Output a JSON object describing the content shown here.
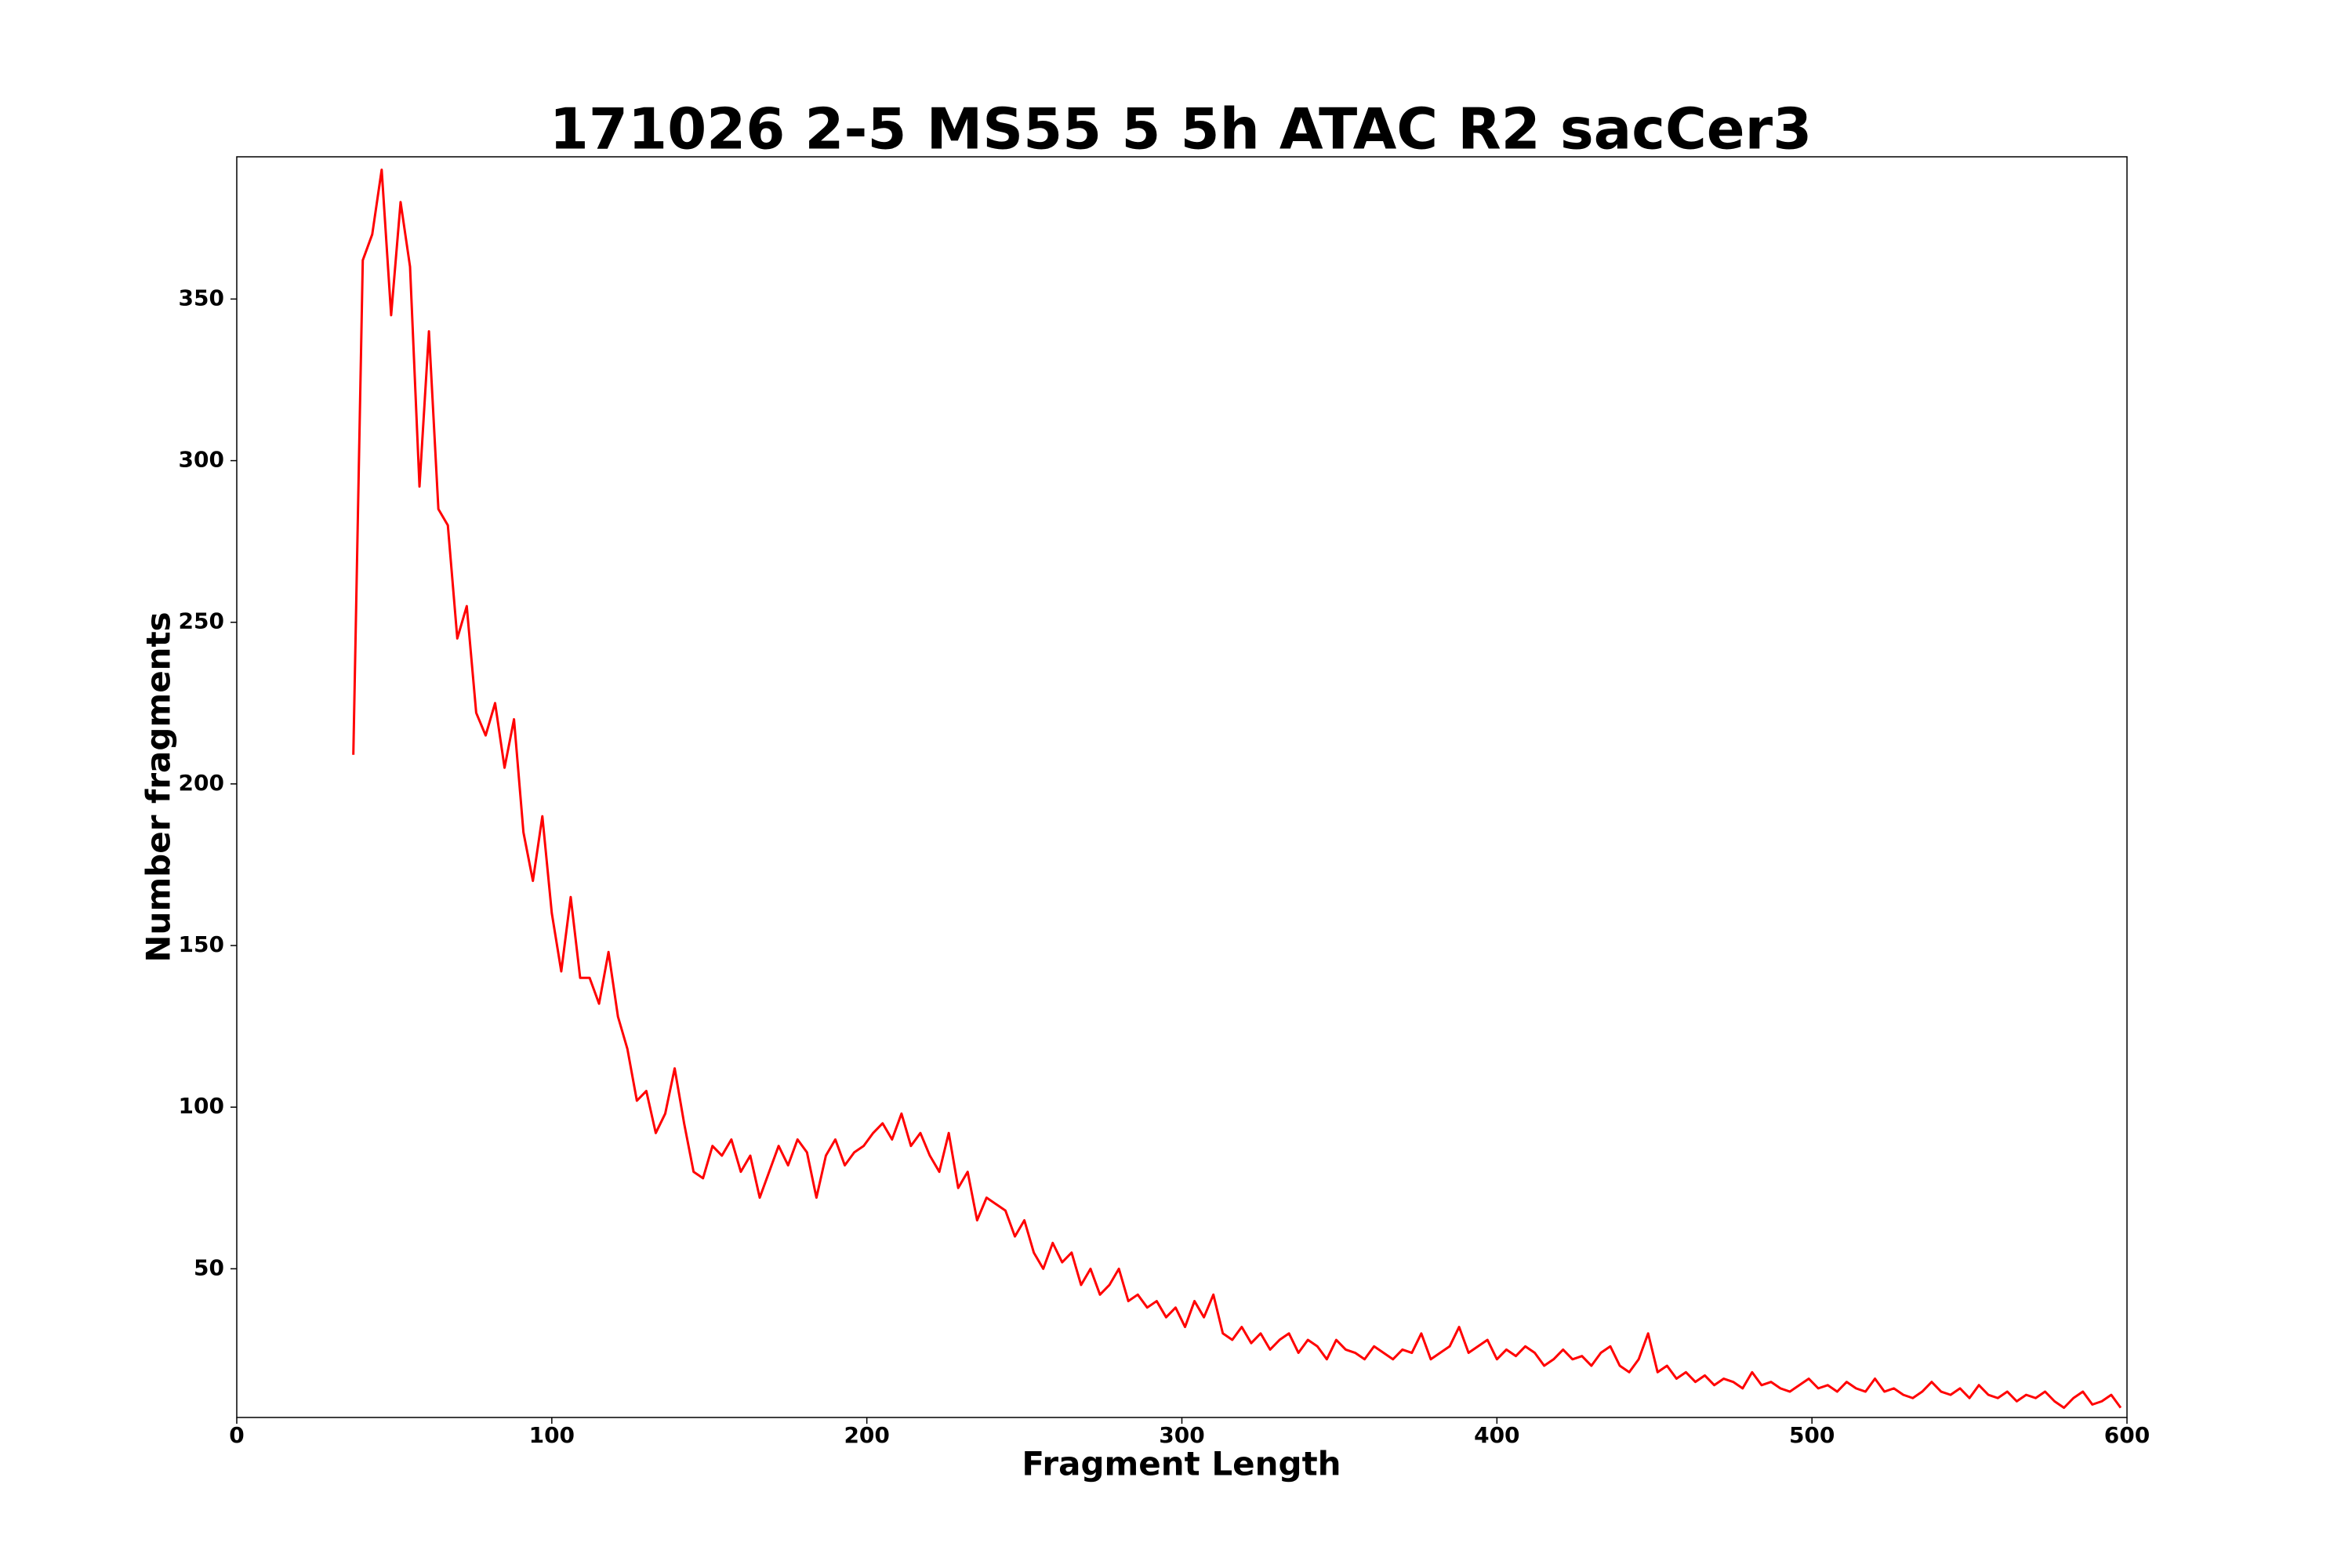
{
  "chart_data": {
    "type": "line",
    "title": "171026 2-5 MS55 5 5h ATAC R2 sacCer3",
    "xlabel": "Fragment Length",
    "ylabel": "Number fragments",
    "x": [
      37,
      40,
      43,
      46,
      49,
      52,
      55,
      58,
      61,
      64,
      67,
      70,
      73,
      76,
      79,
      82,
      85,
      88,
      91,
      94,
      97,
      100,
      103,
      106,
      109,
      112,
      115,
      118,
      121,
      124,
      127,
      130,
      133,
      136,
      139,
      142,
      145,
      148,
      151,
      154,
      157,
      160,
      163,
      166,
      169,
      172,
      175,
      178,
      181,
      184,
      187,
      190,
      193,
      196,
      199,
      202,
      205,
      208,
      211,
      214,
      217,
      220,
      223,
      226,
      229,
      232,
      235,
      238,
      241,
      244,
      247,
      250,
      253,
      256,
      259,
      262,
      265,
      268,
      271,
      274,
      277,
      280,
      283,
      286,
      289,
      292,
      295,
      298,
      301,
      304,
      307,
      310,
      313,
      316,
      319,
      322,
      325,
      328,
      331,
      334,
      337,
      340,
      343,
      346,
      349,
      352,
      355,
      358,
      361,
      364,
      367,
      370,
      373,
      376,
      379,
      382,
      385,
      388,
      391,
      394,
      397,
      400,
      403,
      406,
      409,
      412,
      415,
      418,
      421,
      424,
      427,
      430,
      433,
      436,
      439,
      442,
      445,
      448,
      451,
      454,
      457,
      460,
      463,
      466,
      469,
      472,
      475,
      478,
      481,
      484,
      487,
      490,
      493,
      496,
      499,
      502,
      505,
      508,
      511,
      514,
      517,
      520,
      523,
      526,
      529,
      532,
      535,
      538,
      541,
      544,
      547,
      550,
      553,
      556,
      559,
      562,
      565,
      568,
      571,
      574,
      577,
      580,
      583,
      586,
      589,
      592,
      595,
      598
    ],
    "series": [
      {
        "name": "fragments",
        "color": "#ff0000",
        "values": [
          209,
          362,
          370,
          390,
          345,
          380,
          360,
          292,
          340,
          285,
          280,
          245,
          255,
          222,
          215,
          225,
          205,
          220,
          185,
          170,
          190,
          160,
          142,
          165,
          140,
          140,
          132,
          148,
          128,
          118,
          102,
          105,
          92,
          98,
          112,
          95,
          80,
          78,
          88,
          85,
          90,
          80,
          85,
          72,
          80,
          88,
          82,
          90,
          86,
          72,
          85,
          90,
          82,
          86,
          88,
          92,
          95,
          90,
          98,
          88,
          92,
          85,
          80,
          92,
          75,
          80,
          65,
          72,
          70,
          68,
          60,
          65,
          55,
          50,
          58,
          52,
          55,
          45,
          50,
          42,
          45,
          50,
          40,
          42,
          38,
          40,
          35,
          38,
          32,
          40,
          35,
          42,
          30,
          28,
          32,
          27,
          30,
          25,
          28,
          30,
          24,
          28,
          26,
          22,
          28,
          25,
          24,
          22,
          26,
          24,
          22,
          25,
          24,
          30,
          22,
          24,
          26,
          32,
          24,
          26,
          28,
          22,
          25,
          23,
          26,
          24,
          20,
          22,
          25,
          22,
          23,
          20,
          24,
          26,
          20,
          18,
          22,
          30,
          18,
          20,
          16,
          18,
          15,
          17,
          14,
          16,
          15,
          13,
          18,
          14,
          15,
          13,
          12,
          14,
          16,
          13,
          14,
          12,
          15,
          13,
          12,
          16,
          12,
          13,
          11,
          10,
          12,
          15,
          12,
          11,
          13,
          10,
          14,
          11,
          10,
          12,
          9,
          11,
          10,
          12,
          9,
          7,
          10,
          12,
          8,
          9,
          11,
          7
        ]
      }
    ],
    "xlim": [
      0,
      600
    ],
    "xticks": [
      0,
      100,
      200,
      300,
      400,
      500,
      600
    ],
    "ylim": [
      4,
      394
    ],
    "yticks": [
      50,
      100,
      150,
      200,
      250,
      300,
      350
    ],
    "grid": false
  }
}
